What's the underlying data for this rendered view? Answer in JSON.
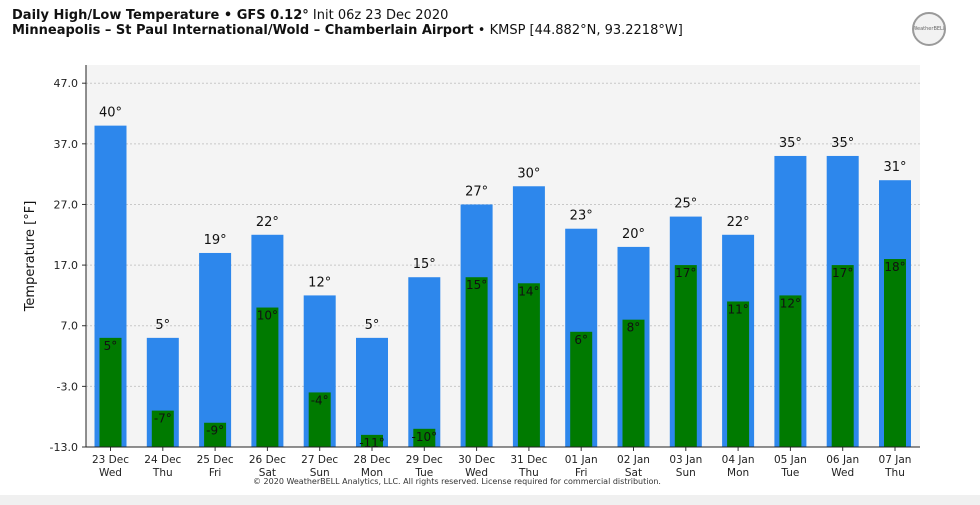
{
  "header": {
    "title_bold": "Daily High/Low Temperature • GFS 0.12°",
    "title_normal": " Init 06z 23 Dec 2020",
    "subtitle_bold": "Minneapolis – St Paul International/Wold – Chamberlain Airport",
    "subtitle_normal": " • KMSP [44.882°N, 93.2218°W]"
  },
  "logo_text": "WeatherBELL",
  "copyright": "© 2020 WeatherBELL Analytics, LLC. All rights reserved. License required for commercial distribution.",
  "colors": {
    "high": "#2d87ec",
    "low": "#007a00",
    "plot_bg": "#f4f4f4"
  },
  "chart_data": {
    "type": "bar",
    "ylabel": "Temperature [°F]",
    "ylim": [
      -13.0,
      50.0
    ],
    "yticks": [
      "47.0",
      "37.0",
      "27.0",
      "17.0",
      "7.0",
      "-3.0",
      "-13.0"
    ],
    "ytick_values": [
      47,
      37,
      27,
      17,
      7,
      -3,
      -13
    ],
    "grid": true,
    "categories": [
      [
        "23 Dec",
        "Wed"
      ],
      [
        "24 Dec",
        "Thu"
      ],
      [
        "25 Dec",
        "Fri"
      ],
      [
        "26 Dec",
        "Sat"
      ],
      [
        "27 Dec",
        "Sun"
      ],
      [
        "28 Dec",
        "Mon"
      ],
      [
        "29 Dec",
        "Tue"
      ],
      [
        "30 Dec",
        "Wed"
      ],
      [
        "31 Dec",
        "Thu"
      ],
      [
        "01 Jan",
        "Fri"
      ],
      [
        "02 Jan",
        "Sat"
      ],
      [
        "03 Jan",
        "Sun"
      ],
      [
        "04 Jan",
        "Mon"
      ],
      [
        "05 Jan",
        "Tue"
      ],
      [
        "06 Jan",
        "Wed"
      ],
      [
        "07 Jan",
        "Thu"
      ]
    ],
    "series": [
      {
        "values": [
          40,
          5,
          19,
          22,
          12,
          5,
          15,
          27,
          30,
          23,
          20,
          25,
          22,
          35,
          35,
          31
        ],
        "labels": [
          "40°",
          "5°",
          "19°",
          "22°",
          "12°",
          "5°",
          "15°",
          "27°",
          "30°",
          "23°",
          "20°",
          "25°",
          "22°",
          "35°",
          "35°",
          "31°"
        ]
      },
      {
        "values": [
          5,
          -7,
          -9,
          10,
          -4,
          -11,
          -10,
          15,
          14,
          6,
          8,
          17,
          11,
          12,
          17,
          18
        ],
        "labels": [
          "5°",
          "-7°",
          "-9°",
          "10°",
          "-4°",
          "-11°",
          "-10°",
          "15°",
          "14°",
          "6°",
          "8°",
          "17°",
          "11°",
          "12°",
          "17°",
          "18°"
        ]
      }
    ]
  }
}
